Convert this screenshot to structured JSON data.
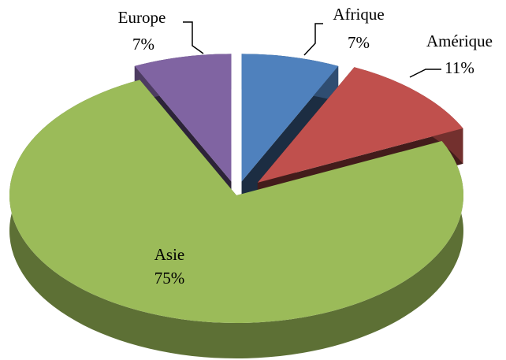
{
  "chart_data": {
    "type": "pie",
    "categories": [
      "Afrique",
      "Amérique",
      "Asie",
      "Europe"
    ],
    "values": [
      7,
      11,
      75,
      7
    ],
    "value_labels": [
      "7%",
      "11%",
      "75%",
      "7%"
    ],
    "colors": [
      "#4f81bd",
      "#c0504d",
      "#9bbb59",
      "#8064a2"
    ]
  }
}
